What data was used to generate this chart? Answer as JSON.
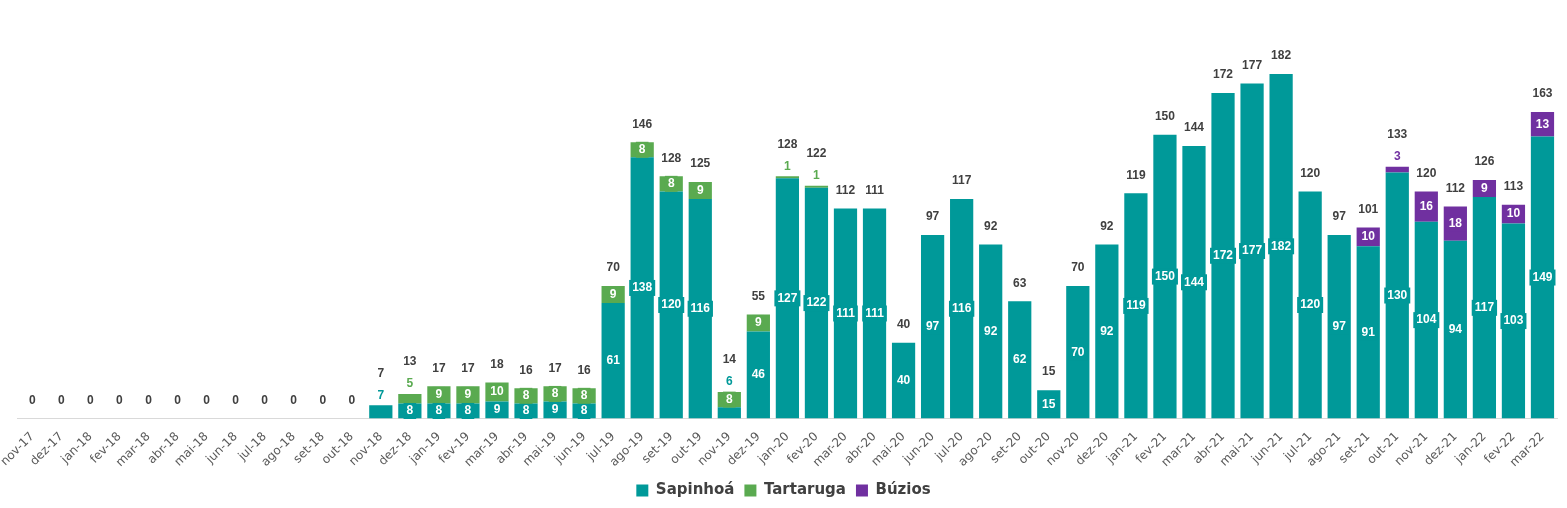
{
  "chart_data": {
    "type": "bar",
    "stacked": true,
    "legend": "bottom",
    "grid": false,
    "tick_labels": "x",
    "categories": [
      "nov-17",
      "dez-17",
      "jan-18",
      "fev-18",
      "mar-18",
      "abr-18",
      "mai-18",
      "jun-18",
      "jul-18",
      "ago-18",
      "set-18",
      "out-18",
      "nov-18",
      "dez-18",
      "jan-19",
      "fev-19",
      "mar-19",
      "abr-19",
      "mai-19",
      "jun-19",
      "jul-19",
      "ago-19",
      "set-19",
      "out-19",
      "nov-19",
      "dez-19",
      "jan-20",
      "fev-20",
      "mar-20",
      "abr-20",
      "mai-20",
      "jun-20",
      "jul-20",
      "ago-20",
      "set-20",
      "out-20",
      "nov-20",
      "dez-20",
      "jan-21",
      "fev-21",
      "mar-21",
      "abr-21",
      "mai-21",
      "jun-21",
      "jul-21",
      "ago-21",
      "set-21",
      "out-21",
      "nov-21",
      "dez-21",
      "jan-22",
      "fev-22",
      "mar-22"
    ],
    "series": [
      {
        "name": "Sapinhoá",
        "color": "#009999",
        "values": [
          0,
          0,
          0,
          0,
          0,
          0,
          0,
          0,
          0,
          0,
          0,
          0,
          7,
          8,
          8,
          8,
          9,
          8,
          9,
          8,
          61,
          138,
          120,
          116,
          6,
          46,
          127,
          122,
          111,
          111,
          40,
          97,
          116,
          92,
          62,
          15,
          70,
          92,
          119,
          150,
          144,
          172,
          177,
          182,
          120,
          97,
          91,
          130,
          104,
          94,
          117,
          103,
          149
        ],
        "value_labels": [
          null,
          null,
          null,
          null,
          null,
          null,
          null,
          null,
          null,
          null,
          null,
          null,
          "7",
          "8",
          "8",
          "8",
          "9",
          "8",
          "9",
          "8",
          "61",
          "138",
          "120",
          "116",
          "6",
          "46",
          "127",
          "122",
          "111",
          "111",
          "40",
          "97",
          "116",
          "92",
          "62",
          "15",
          "70",
          "92",
          "119",
          "150",
          "144",
          "172",
          "177",
          "182",
          "120",
          "97",
          "91",
          "130",
          "104",
          "94",
          "117",
          "103",
          "149"
        ]
      },
      {
        "name": "Tartaruga",
        "color": "#5aaa50",
        "values": [
          null,
          null,
          null,
          null,
          null,
          null,
          null,
          null,
          null,
          null,
          null,
          null,
          null,
          5,
          9,
          9,
          10,
          8,
          8,
          8,
          9,
          8,
          8,
          9,
          8,
          9,
          1,
          1,
          null,
          null,
          null,
          null,
          null,
          null,
          null,
          null,
          null,
          null,
          null,
          null,
          null,
          null,
          null,
          null,
          null,
          null,
          null,
          null,
          null,
          null,
          null,
          null,
          null
        ],
        "value_labels": [
          null,
          null,
          null,
          null,
          null,
          null,
          null,
          null,
          null,
          null,
          null,
          null,
          null,
          "5",
          "9",
          "9",
          "10",
          "8",
          "8",
          "8",
          "9",
          "8",
          "8",
          "9",
          "8",
          "9",
          "1",
          "1",
          null,
          null,
          null,
          null,
          null,
          null,
          null,
          null,
          null,
          null,
          null,
          null,
          null,
          null,
          null,
          null,
          null,
          null,
          null,
          null,
          null,
          null,
          null,
          null,
          null
        ]
      },
      {
        "name": "Búzios",
        "color": "#7030a0",
        "values": [
          null,
          null,
          null,
          null,
          null,
          null,
          null,
          null,
          null,
          null,
          null,
          null,
          null,
          null,
          null,
          null,
          null,
          null,
          null,
          null,
          null,
          null,
          null,
          null,
          null,
          null,
          null,
          null,
          null,
          null,
          null,
          null,
          null,
          null,
          null,
          null,
          null,
          null,
          null,
          null,
          null,
          null,
          null,
          null,
          null,
          null,
          10,
          3,
          16,
          18,
          9,
          10,
          13
        ],
        "value_labels": [
          null,
          null,
          null,
          null,
          null,
          null,
          null,
          null,
          null,
          null,
          null,
          null,
          null,
          null,
          null,
          null,
          null,
          null,
          null,
          null,
          null,
          null,
          null,
          null,
          null,
          null,
          null,
          null,
          null,
          null,
          null,
          null,
          null,
          null,
          null,
          null,
          null,
          null,
          null,
          null,
          null,
          null,
          null,
          null,
          null,
          null,
          "10",
          "3",
          "16",
          "18",
          "9",
          "10",
          "13"
        ]
      }
    ],
    "totals": [
      "0",
      "0",
      "0",
      "0",
      "0",
      "0",
      "0",
      "0",
      "0",
      "0",
      "0",
      "0",
      "7",
      "13",
      "17",
      "17",
      "18",
      "16",
      "17",
      "16",
      "70",
      "146",
      "128",
      "125",
      "14",
      "55",
      "128",
      "122",
      "112",
      "111",
      "40",
      "97",
      "117",
      "92",
      "63",
      "15",
      "70",
      "92",
      "119",
      "150",
      "144",
      "172",
      "177",
      "182",
      "120",
      "97",
      "101",
      "133",
      "120",
      "112",
      "126",
      "113",
      "163"
    ]
  }
}
